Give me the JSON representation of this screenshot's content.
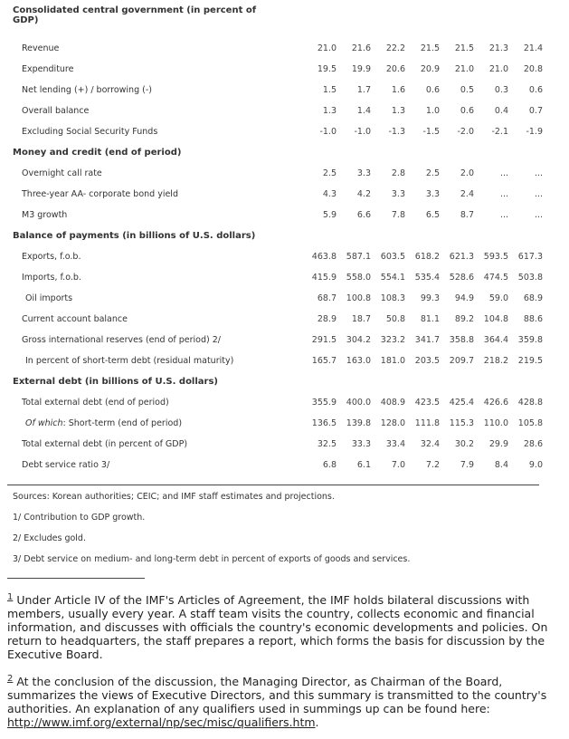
{
  "sections": [
    {
      "title": "Consolidated central government (in percent of GDP)",
      "rows": [
        {
          "label": "Revenue",
          "values": [
            "21.0",
            "21.6",
            "22.2",
            "21.5",
            "21.5",
            "21.3",
            "21.4"
          ]
        },
        {
          "label": "Expenditure",
          "values": [
            "19.5",
            "19.9",
            "20.6",
            "20.9",
            "21.0",
            "21.0",
            "20.8"
          ]
        },
        {
          "label": "Net lending (+) / borrowing (-)",
          "values": [
            "1.5",
            "1.7",
            "1.6",
            "0.6",
            "0.5",
            "0.3",
            "0.6"
          ]
        },
        {
          "label": "Overall balance",
          "values": [
            "1.3",
            "1.4",
            "1.3",
            "1.0",
            "0.6",
            "0.4",
            "0.7"
          ]
        },
        {
          "label": "Excluding Social Security Funds",
          "values": [
            "-1.0",
            "-1.0",
            "-1.3",
            "-1.5",
            "-2.0",
            "-2.1",
            "-1.9"
          ]
        }
      ]
    },
    {
      "title": "Money and credit (end of period)",
      "rows": [
        {
          "label": "Overnight call rate",
          "values": [
            "2.5",
            "3.3",
            "2.8",
            "2.5",
            "2.0",
            "...",
            "..."
          ]
        },
        {
          "label": "Three-year AA- corporate bond yield",
          "values": [
            "4.3",
            "4.2",
            "3.3",
            "3.3",
            "2.4",
            "...",
            "..."
          ]
        },
        {
          "label": "M3 growth",
          "values": [
            "5.9",
            "6.6",
            "7.8",
            "6.5",
            "8.7",
            "...",
            "..."
          ]
        }
      ]
    },
    {
      "title": "Balance of payments (in billions of U.S. dollars)",
      "rows": [
        {
          "label": "Exports, f.o.b.",
          "values": [
            "463.8",
            "587.1",
            "603.5",
            "618.2",
            "621.3",
            "593.5",
            "617.3"
          ]
        },
        {
          "label": "Imports, f.o.b.",
          "values": [
            "415.9",
            "558.0",
            "554.1",
            "535.4",
            "528.6",
            "474.5",
            "503.8"
          ]
        },
        {
          "label": "Oil imports",
          "indent": true,
          "values": [
            "68.7",
            "100.8",
            "108.3",
            "99.3",
            "94.9",
            "59.0",
            "68.9"
          ]
        },
        {
          "label": "Current account balance",
          "values": [
            "28.9",
            "18.7",
            "50.8",
            "81.1",
            "89.2",
            "104.8",
            "88.6"
          ]
        },
        {
          "label": "Gross international reserves (end of period) 2/",
          "values": [
            "291.5",
            "304.2",
            "323.2",
            "341.7",
            "358.8",
            "364.4",
            "359.8"
          ]
        },
        {
          "label": "In percent of short-term debt (residual maturity)",
          "indent": true,
          "values": [
            "165.7",
            "163.0",
            "181.0",
            "203.5",
            "209.7",
            "218.2",
            "219.5"
          ]
        }
      ]
    },
    {
      "title": "External debt (in billions of U.S. dollars)",
      "rows": [
        {
          "label": "Total external debt (end of period)",
          "values": [
            "355.9",
            "400.0",
            "408.9",
            "423.5",
            "425.4",
            "426.6",
            "428.8"
          ]
        },
        {
          "label_italic": "Of which",
          "label": ": Short-term (end of period)",
          "indent": true,
          "values": [
            "136.5",
            "139.8",
            "128.0",
            "111.8",
            "115.3",
            "110.0",
            "105.8"
          ]
        },
        {
          "label": "Total external debt (in percent of GDP)",
          "values": [
            "32.5",
            "33.3",
            "33.4",
            "32.4",
            "30.2",
            "29.9",
            "28.6"
          ]
        },
        {
          "label": "Debt service ratio 3/",
          "values": [
            "6.8",
            "6.1",
            "7.0",
            "7.2",
            "7.9",
            "8.4",
            "9.0"
          ]
        }
      ]
    }
  ],
  "notes": [
    "Sources: Korean authorities; CEIC; and IMF staff estimates and projections.",
    "1/ Contribution to GDP growth.",
    "2/ Excludes gold.",
    "3/ Debt service on medium- and long-term debt in percent of exports of goods and services."
  ],
  "footnotes": [
    {
      "mark": "1",
      "text": " Under Article IV of the IMF's Articles of Agreement, the IMF holds bilateral discussions with members, usually every year. A staff team visits the country, collects economic and financial information, and discusses with officials the country's economic developments and policies. On return to headquarters, the staff prepares a report, which forms the basis for discussion by the Executive Board."
    },
    {
      "mark": "2",
      "text": " At the conclusion of the discussion, the Managing Director, as Chairman of the Board, summarizes the views of Executive Directors, and this summary is transmitted to the country's authorities. An explanation of any qualifiers used in summings up can be found here: ",
      "link": "http://www.imf.org/external/np/sec/misc/qualifiers.htm",
      "end": "."
    }
  ]
}
